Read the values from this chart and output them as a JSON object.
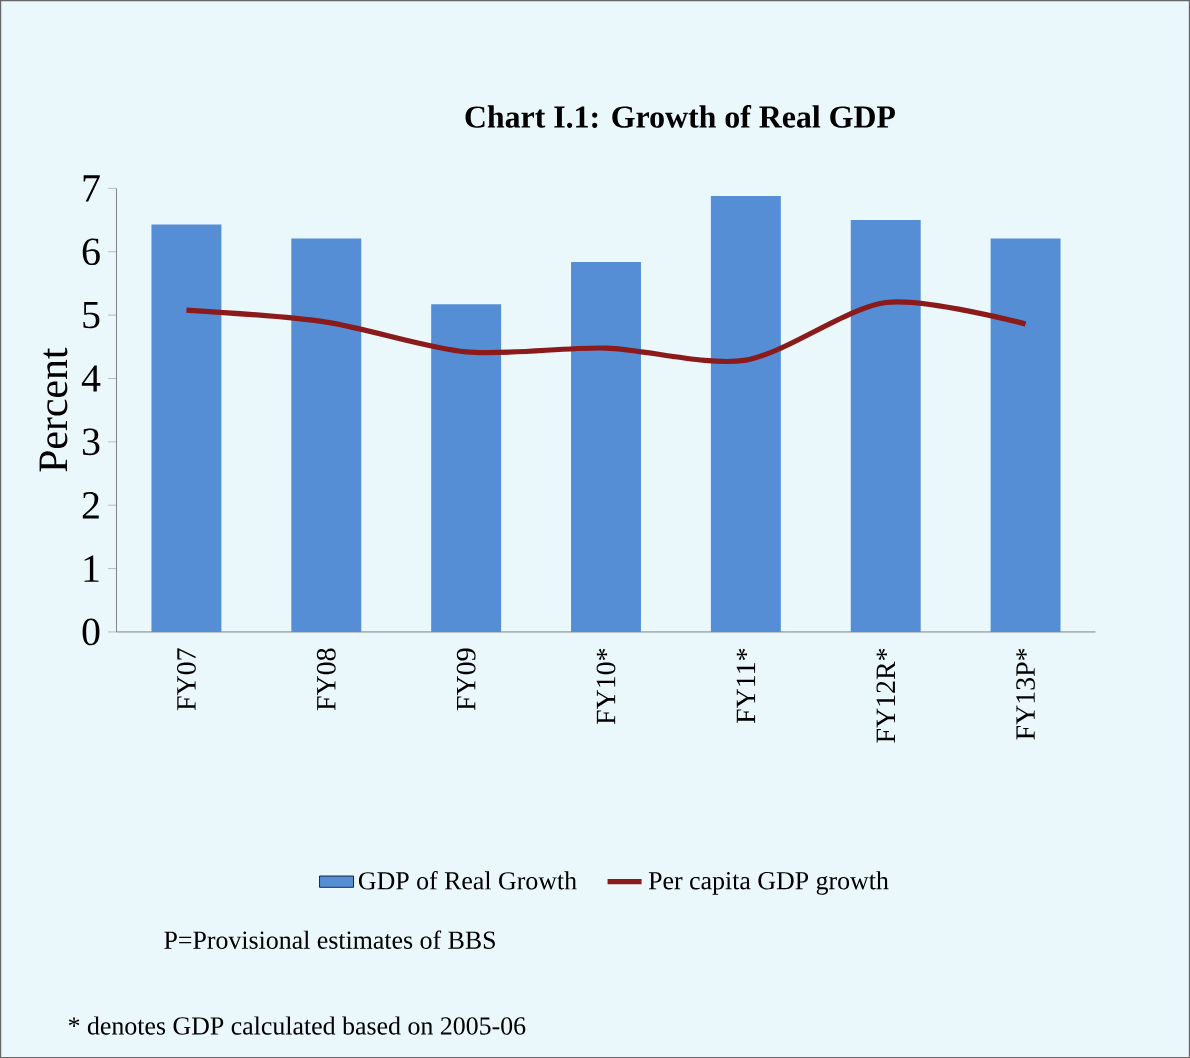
{
  "chart_data": {
    "type": "bar",
    "title": "Chart I.1:  Growth of Real GDP",
    "ylabel": "Percent",
    "categories": [
      "FY07",
      "FY08",
      "FY09",
      "FY10*",
      "FY11*",
      "FY12R*",
      "FY13P*"
    ],
    "series": [
      {
        "name": "GDP of Real Growth",
        "color": "#558ed5",
        "values": [
          6.43,
          6.21,
          5.17,
          5.84,
          6.88,
          6.5,
          6.21
        ]
      },
      {
        "name": "Per capita GDP growth",
        "type": "line",
        "color": "#8b1a1a",
        "values": [
          5.08,
          4.89,
          4.42,
          4.48,
          4.29,
          5.2,
          4.86
        ]
      }
    ],
    "ylim": [
      0,
      7
    ],
    "yticks": [
      0,
      1,
      2,
      3,
      4,
      5,
      6,
      7
    ],
    "grid": false,
    "legend": "bottom",
    "marker": "none",
    "annotations": [
      "P=Provisional estimates of BBS",
      "* denotes  GDP calculated based on 2005-06"
    ]
  }
}
